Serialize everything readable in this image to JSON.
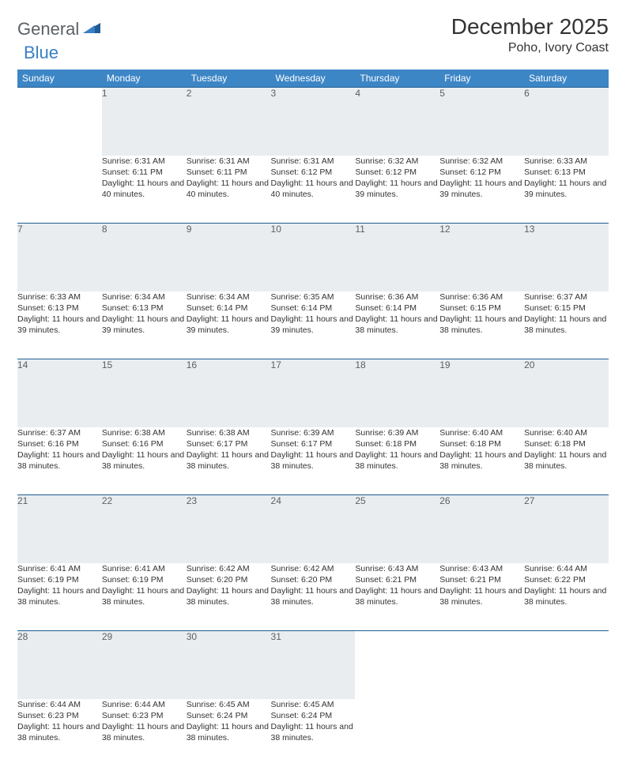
{
  "logo": {
    "text1": "General",
    "text2": "Blue"
  },
  "title": "December 2025",
  "location": "Poho, Ivory Coast",
  "colors": {
    "header_bg": "#3d86c6",
    "header_text": "#ffffff",
    "daynum_bg": "#e9edf0",
    "daynum_text": "#5a6066",
    "border": "#1f5d94",
    "body_text": "#333333",
    "logo_gray": "#5a6066",
    "logo_blue": "#3a7fc4"
  },
  "calendar": {
    "type": "table",
    "columns": [
      "Sunday",
      "Monday",
      "Tuesday",
      "Wednesday",
      "Thursday",
      "Friday",
      "Saturday"
    ],
    "weeks": [
      {
        "days": [
          null,
          {
            "n": "1",
            "sr": "6:31 AM",
            "ss": "6:11 PM",
            "dl": "11 hours and 40 minutes."
          },
          {
            "n": "2",
            "sr": "6:31 AM",
            "ss": "6:11 PM",
            "dl": "11 hours and 40 minutes."
          },
          {
            "n": "3",
            "sr": "6:31 AM",
            "ss": "6:12 PM",
            "dl": "11 hours and 40 minutes."
          },
          {
            "n": "4",
            "sr": "6:32 AM",
            "ss": "6:12 PM",
            "dl": "11 hours and 39 minutes."
          },
          {
            "n": "5",
            "sr": "6:32 AM",
            "ss": "6:12 PM",
            "dl": "11 hours and 39 minutes."
          },
          {
            "n": "6",
            "sr": "6:33 AM",
            "ss": "6:13 PM",
            "dl": "11 hours and 39 minutes."
          }
        ]
      },
      {
        "days": [
          {
            "n": "7",
            "sr": "6:33 AM",
            "ss": "6:13 PM",
            "dl": "11 hours and 39 minutes."
          },
          {
            "n": "8",
            "sr": "6:34 AM",
            "ss": "6:13 PM",
            "dl": "11 hours and 39 minutes."
          },
          {
            "n": "9",
            "sr": "6:34 AM",
            "ss": "6:14 PM",
            "dl": "11 hours and 39 minutes."
          },
          {
            "n": "10",
            "sr": "6:35 AM",
            "ss": "6:14 PM",
            "dl": "11 hours and 39 minutes."
          },
          {
            "n": "11",
            "sr": "6:36 AM",
            "ss": "6:14 PM",
            "dl": "11 hours and 38 minutes."
          },
          {
            "n": "12",
            "sr": "6:36 AM",
            "ss": "6:15 PM",
            "dl": "11 hours and 38 minutes."
          },
          {
            "n": "13",
            "sr": "6:37 AM",
            "ss": "6:15 PM",
            "dl": "11 hours and 38 minutes."
          }
        ]
      },
      {
        "days": [
          {
            "n": "14",
            "sr": "6:37 AM",
            "ss": "6:16 PM",
            "dl": "11 hours and 38 minutes."
          },
          {
            "n": "15",
            "sr": "6:38 AM",
            "ss": "6:16 PM",
            "dl": "11 hours and 38 minutes."
          },
          {
            "n": "16",
            "sr": "6:38 AM",
            "ss": "6:17 PM",
            "dl": "11 hours and 38 minutes."
          },
          {
            "n": "17",
            "sr": "6:39 AM",
            "ss": "6:17 PM",
            "dl": "11 hours and 38 minutes."
          },
          {
            "n": "18",
            "sr": "6:39 AM",
            "ss": "6:18 PM",
            "dl": "11 hours and 38 minutes."
          },
          {
            "n": "19",
            "sr": "6:40 AM",
            "ss": "6:18 PM",
            "dl": "11 hours and 38 minutes."
          },
          {
            "n": "20",
            "sr": "6:40 AM",
            "ss": "6:18 PM",
            "dl": "11 hours and 38 minutes."
          }
        ]
      },
      {
        "days": [
          {
            "n": "21",
            "sr": "6:41 AM",
            "ss": "6:19 PM",
            "dl": "11 hours and 38 minutes."
          },
          {
            "n": "22",
            "sr": "6:41 AM",
            "ss": "6:19 PM",
            "dl": "11 hours and 38 minutes."
          },
          {
            "n": "23",
            "sr": "6:42 AM",
            "ss": "6:20 PM",
            "dl": "11 hours and 38 minutes."
          },
          {
            "n": "24",
            "sr": "6:42 AM",
            "ss": "6:20 PM",
            "dl": "11 hours and 38 minutes."
          },
          {
            "n": "25",
            "sr": "6:43 AM",
            "ss": "6:21 PM",
            "dl": "11 hours and 38 minutes."
          },
          {
            "n": "26",
            "sr": "6:43 AM",
            "ss": "6:21 PM",
            "dl": "11 hours and 38 minutes."
          },
          {
            "n": "27",
            "sr": "6:44 AM",
            "ss": "6:22 PM",
            "dl": "11 hours and 38 minutes."
          }
        ]
      },
      {
        "days": [
          {
            "n": "28",
            "sr": "6:44 AM",
            "ss": "6:23 PM",
            "dl": "11 hours and 38 minutes."
          },
          {
            "n": "29",
            "sr": "6:44 AM",
            "ss": "6:23 PM",
            "dl": "11 hours and 38 minutes."
          },
          {
            "n": "30",
            "sr": "6:45 AM",
            "ss": "6:24 PM",
            "dl": "11 hours and 38 minutes."
          },
          {
            "n": "31",
            "sr": "6:45 AM",
            "ss": "6:24 PM",
            "dl": "11 hours and 38 minutes."
          },
          null,
          null,
          null
        ]
      }
    ],
    "labels": {
      "sunrise": "Sunrise:",
      "sunset": "Sunset:",
      "daylight": "Daylight:"
    }
  }
}
